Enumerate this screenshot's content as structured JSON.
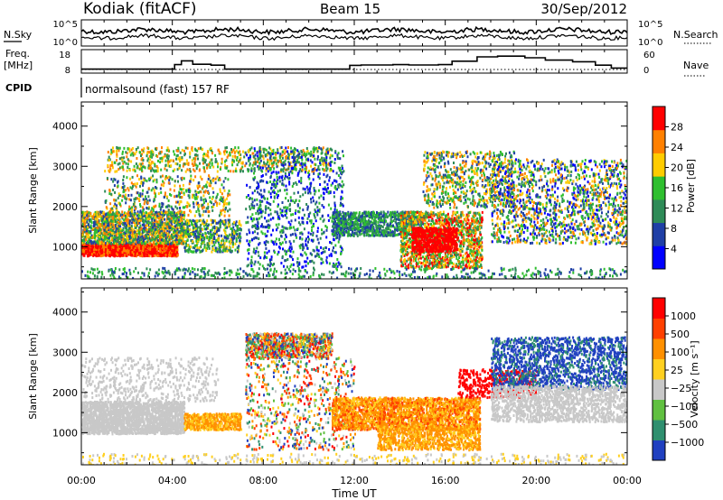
{
  "header": {
    "station": "Kodiak (fitACF)",
    "beam": "Beam 15",
    "date": "30/Sep/2012"
  },
  "left_labels": {
    "nsky": "N.Sky",
    "freq": "Freq.",
    "freq_unit": "[MHz]",
    "cpid": "CPID"
  },
  "right_labels": {
    "nsearch": "N.Search",
    "nave": "Nave"
  },
  "cpid_text": "normalsound (fast) 157 RF",
  "chart_data": [
    {
      "type": "line",
      "name": "noise-panel",
      "x_range": [
        0,
        24
      ],
      "left_axis": {
        "ticks": [
          "10^5",
          "10^0"
        ]
      },
      "right_axis": {
        "ticks": [
          "10^5",
          "10^0"
        ]
      },
      "series": []
    },
    {
      "type": "line",
      "name": "freq-nave-panel",
      "x_range": [
        0,
        24
      ],
      "left_axis": {
        "ticks": [
          "18",
          "8"
        ],
        "range": [
          8,
          18
        ]
      },
      "right_axis": {
        "ticks": [
          "60",
          "0"
        ],
        "range": [
          0,
          60
        ]
      },
      "freq_steps": [
        [
          0,
          10.2
        ],
        [
          4.1,
          10.2
        ],
        [
          4.4,
          12.7
        ],
        [
          4.9,
          14.8
        ],
        [
          5.7,
          12.9
        ],
        [
          6.3,
          12.4
        ],
        [
          6.7,
          10.2
        ],
        [
          11.8,
          10.2
        ],
        [
          12.3,
          12.3
        ],
        [
          13.7,
          12.5
        ],
        [
          14.4,
          12.7
        ],
        [
          15.7,
          12.5
        ],
        [
          16.3,
          12.7
        ],
        [
          17.4,
          14.6
        ],
        [
          18.3,
          17.0
        ],
        [
          19.5,
          17.4
        ],
        [
          20.4,
          16.5
        ],
        [
          21.6,
          15.2
        ],
        [
          22.6,
          14.3
        ],
        [
          23.3,
          12.4
        ],
        [
          23.6,
          10.8
        ],
        [
          24,
          10.8
        ]
      ],
      "nave_level": 12
    },
    {
      "type": "heatmap",
      "name": "power-panel",
      "xlabel": "",
      "ylabel": "Slant Range [km]",
      "x_range": [
        0,
        24
      ],
      "y_range": [
        200,
        4600
      ],
      "y_ticks": [
        1000,
        2000,
        3000,
        4000
      ],
      "colorbar": {
        "label": "Power [dB]",
        "ticks": [
          "28",
          "24",
          "20",
          "16",
          "12",
          "8",
          "4"
        ],
        "colors": [
          "#0000ff",
          "#1f3fa6",
          "#2e8b57",
          "#2fbf2f",
          "#ffcc00",
          "#ff8000",
          "#ff0000"
        ]
      }
    },
    {
      "type": "heatmap",
      "name": "velocity-panel",
      "xlabel": "Time UT",
      "ylabel": "Slant Range [km]",
      "x_range": [
        0,
        24
      ],
      "y_range": [
        200,
        4600
      ],
      "y_ticks": [
        1000,
        2000,
        3000,
        4000
      ],
      "x_ticks": [
        "00:00",
        "04:00",
        "08:00",
        "12:00",
        "16:00",
        "20:00",
        "00:00"
      ],
      "colorbar": {
        "label": "Velocity [m s⁻¹]",
        "ticks": [
          "1000",
          "500",
          "100",
          "25",
          "−25",
          "−100",
          "−500",
          "−1000"
        ],
        "colors": [
          "#2040c0",
          "#2f8f6f",
          "#60c040",
          "#c8c8c8",
          "#ffd020",
          "#ff9000",
          "#ff4000",
          "#ff0000"
        ]
      }
    }
  ]
}
